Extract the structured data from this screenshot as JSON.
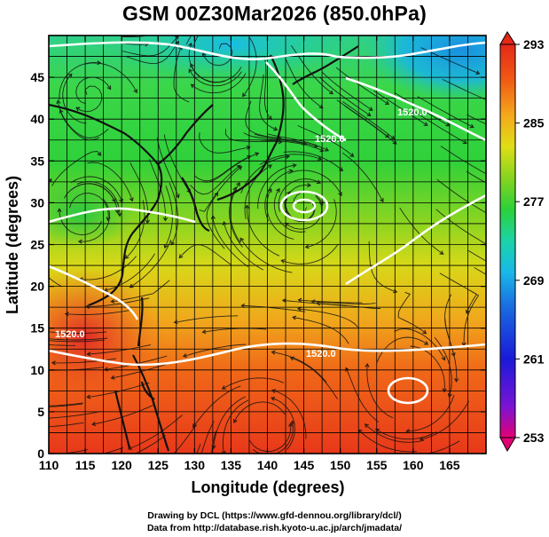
{
  "title": "GSM 00Z30Mar2026 (850.0hPa)",
  "x_axis": {
    "label": "Longitude (degrees)",
    "min": 110,
    "max": 170,
    "ticks": [
      110,
      115,
      120,
      125,
      130,
      135,
      140,
      145,
      150,
      155,
      160,
      165
    ]
  },
  "y_axis": {
    "label": "Latitude  (degrees)",
    "min": 0,
    "max": 50,
    "ticks": [
      0,
      5,
      10,
      15,
      20,
      25,
      30,
      35,
      40,
      45
    ]
  },
  "colorbar": {
    "min": 253,
    "max": 293,
    "labels": [
      293,
      285,
      277,
      269,
      261,
      253
    ],
    "colors": [
      "#e30074",
      "#7a14d4",
      "#1a1ad8",
      "#1a6ae0",
      "#18b8e8",
      "#1cd3a8",
      "#2bd13a",
      "#86d420",
      "#dede16",
      "#f5a81c",
      "#f05a14",
      "#e4281a"
    ]
  },
  "contour_labels": [
    "1520.0",
    "1520.0",
    "1520.0",
    "1520.0"
  ],
  "credits": {
    "line1": "Drawing by DCL (https://www.gfd-dennou.org/library/dcl/)",
    "line2": "Data from http://database.rish.kyoto-u.ac.jp/arch/jmadata/"
  }
}
